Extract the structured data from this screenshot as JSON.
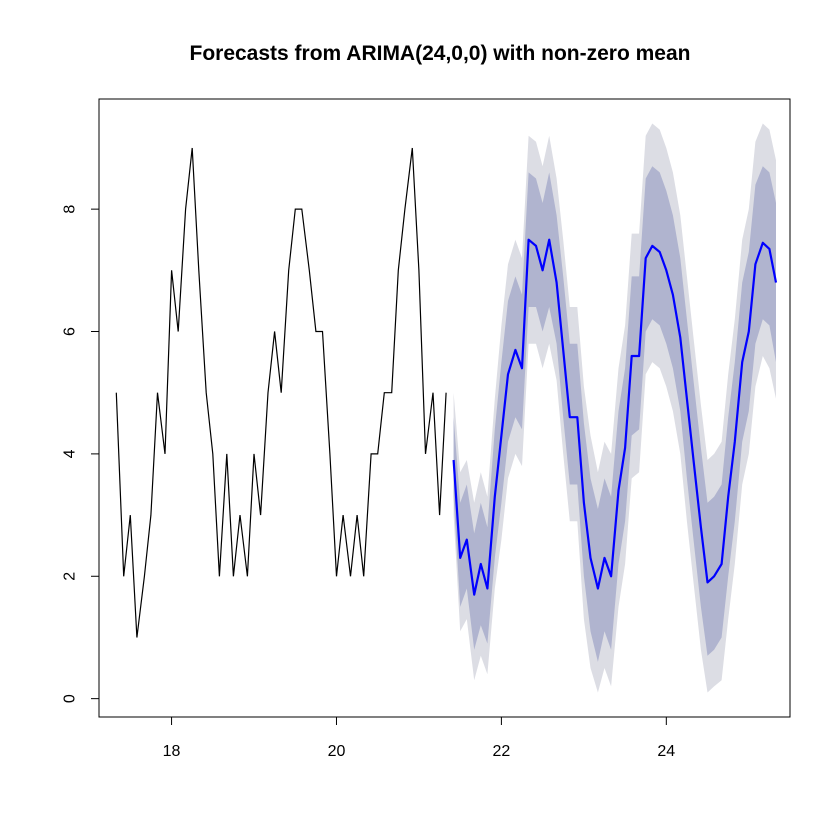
{
  "chart_data": {
    "type": "line",
    "title": "Forecasts from ARIMA(24,0,0) with non-zero mean",
    "xlabel": "",
    "ylabel": "",
    "xlim": [
      17.12,
      25.5
    ],
    "ylim": [
      -0.3,
      9.8
    ],
    "x_ticks": [
      18,
      20,
      22,
      24
    ],
    "y_ticks": [
      0,
      2,
      4,
      6,
      8
    ],
    "x_tick_labels": [
      "18",
      "20",
      "22",
      "24"
    ],
    "y_tick_labels": [
      "0",
      "2",
      "4",
      "6",
      "8"
    ],
    "colors": {
      "history": "#000000",
      "forecast": "#0000ff",
      "band80": "#b0b4cf",
      "band95": "#dcdde4"
    },
    "history": {
      "x": [
        17.33,
        17.42,
        17.5,
        17.58,
        17.67,
        17.75,
        17.83,
        17.92,
        18.0,
        18.08,
        18.17,
        18.25,
        18.33,
        18.42,
        18.5,
        18.58,
        18.67,
        18.75,
        18.83,
        18.92,
        19.0,
        19.08,
        19.17,
        19.25,
        19.33,
        19.42,
        19.5,
        19.58,
        19.67,
        19.75,
        19.83,
        19.92,
        20.0,
        20.08,
        20.17,
        20.25,
        20.33,
        20.42,
        20.5,
        20.58,
        20.67,
        20.75,
        20.83,
        20.92,
        21.0,
        21.08,
        21.17,
        21.25,
        21.33
      ],
      "y": [
        5,
        2,
        3,
        1,
        2,
        3,
        5,
        4,
        7,
        6,
        8,
        9,
        7,
        5,
        4,
        2,
        4,
        2,
        3,
        2,
        4,
        3,
        5,
        6,
        5,
        7,
        8,
        8,
        7,
        6,
        6,
        4,
        2,
        3,
        2,
        3,
        2,
        4,
        4,
        5,
        5,
        7,
        8,
        9,
        7,
        4,
        5,
        3,
        5
      ]
    },
    "forecast": {
      "x": [
        21.42,
        21.5,
        21.58,
        21.67,
        21.75,
        21.83,
        21.92,
        22.0,
        22.08,
        22.17,
        22.25,
        22.33,
        22.42,
        22.5,
        22.58,
        22.67,
        22.75,
        22.83,
        22.92,
        23.0,
        23.08,
        23.17,
        23.25,
        23.33,
        23.42,
        23.5,
        23.58,
        23.67,
        23.75,
        23.83,
        23.92,
        24.0,
        24.08,
        24.17,
        24.25,
        24.33,
        24.42,
        24.5,
        24.58,
        24.67,
        24.75,
        24.83,
        24.92,
        25.0,
        25.08,
        25.17,
        25.25,
        25.33
      ],
      "mean": [
        3.9,
        2.3,
        2.6,
        1.7,
        2.2,
        1.8,
        3.3,
        4.3,
        5.3,
        5.7,
        5.4,
        7.5,
        7.4,
        7.0,
        7.5,
        6.8,
        5.7,
        4.6,
        4.6,
        3.2,
        2.3,
        1.8,
        2.3,
        2.0,
        3.4,
        4.1,
        5.6,
        5.6,
        7.2,
        7.4,
        7.3,
        7.0,
        6.6,
        5.9,
        4.9,
        3.9,
        2.8,
        1.9,
        2.0,
        2.2,
        3.3,
        4.2,
        5.5,
        6.0,
        7.1,
        7.45,
        7.35,
        6.8
      ],
      "lo80": [
        3.3,
        1.5,
        1.8,
        0.8,
        1.2,
        0.9,
        2.3,
        3.2,
        4.2,
        4.6,
        4.4,
        6.4,
        6.4,
        6.0,
        6.4,
        5.8,
        4.6,
        3.5,
        3.5,
        2.0,
        1.1,
        0.6,
        1.1,
        0.8,
        2.2,
        2.9,
        4.3,
        4.4,
        6.0,
        6.2,
        6.1,
        5.8,
        5.4,
        4.7,
        3.6,
        2.6,
        1.5,
        0.7,
        0.8,
        1.0,
        2.0,
        2.9,
        4.2,
        4.7,
        5.8,
        6.2,
        6.1,
        5.5
      ],
      "hi80": [
        4.6,
        3.2,
        3.5,
        2.7,
        3.2,
        2.8,
        4.4,
        5.5,
        6.5,
        6.9,
        6.6,
        8.6,
        8.5,
        8.1,
        8.6,
        7.9,
        6.9,
        5.8,
        5.8,
        4.5,
        3.6,
        3.1,
        3.6,
        3.3,
        4.7,
        5.4,
        6.9,
        6.9,
        8.5,
        8.7,
        8.6,
        8.3,
        7.9,
        7.2,
        6.2,
        5.2,
        4.1,
        3.2,
        3.3,
        3.5,
        4.6,
        5.5,
        6.8,
        7.3,
        8.4,
        8.7,
        8.6,
        8.1
      ],
      "lo95": [
        3.0,
        1.1,
        1.3,
        0.3,
        0.7,
        0.4,
        1.8,
        2.6,
        3.6,
        4.0,
        3.8,
        5.8,
        5.8,
        5.4,
        5.8,
        5.2,
        4.0,
        2.9,
        2.9,
        1.3,
        0.5,
        0.1,
        0.5,
        0.2,
        1.5,
        2.2,
        3.6,
        3.7,
        5.3,
        5.5,
        5.4,
        5.1,
        4.7,
        4.0,
        2.9,
        1.9,
        0.8,
        0.1,
        0.2,
        0.3,
        1.3,
        2.2,
        3.5,
        4.0,
        5.1,
        5.6,
        5.4,
        4.9
      ],
      "hi95": [
        5.0,
        3.7,
        3.9,
        3.2,
        3.7,
        3.3,
        4.9,
        6.1,
        7.1,
        7.5,
        7.2,
        9.2,
        9.1,
        8.7,
        9.2,
        8.5,
        7.5,
        6.4,
        6.4,
        5.1,
        4.3,
        3.7,
        4.2,
        4.0,
        5.4,
        6.1,
        7.6,
        7.6,
        9.2,
        9.4,
        9.3,
        9.0,
        8.6,
        7.9,
        6.9,
        5.9,
        4.8,
        3.9,
        4.0,
        4.2,
        5.3,
        6.2,
        7.5,
        8.0,
        9.1,
        9.4,
        9.3,
        8.8
      ]
    }
  }
}
